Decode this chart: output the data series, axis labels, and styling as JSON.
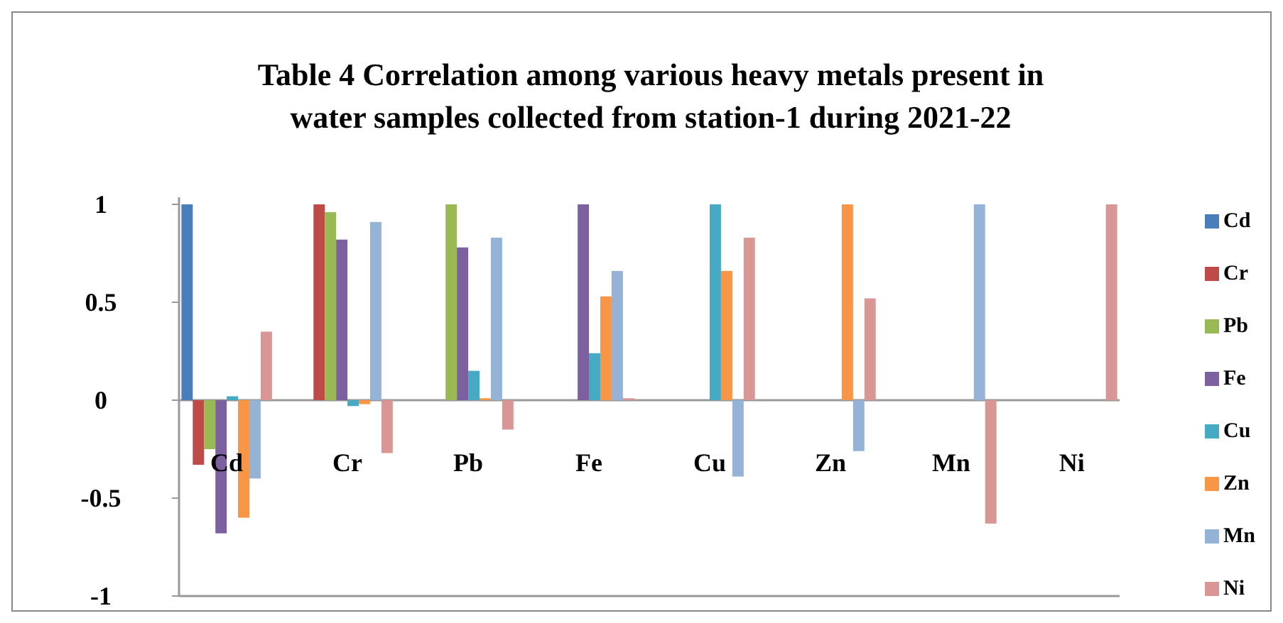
{
  "chart_data": {
    "type": "bar",
    "title": "Table 4 Correlation among various heavy metals present in water samples collected from station-1 during 2021-22",
    "categories": [
      "Cd",
      "Cr",
      "Pb",
      "Fe",
      "Cu",
      "Zn",
      "Mn",
      "Ni"
    ],
    "series": [
      {
        "name": "Cd",
        "color": "#4a7ebb",
        "values": [
          1,
          null,
          null,
          null,
          null,
          null,
          null,
          null
        ]
      },
      {
        "name": "Cr",
        "color": "#be4b48",
        "values": [
          -0.33,
          1,
          null,
          null,
          null,
          null,
          null,
          null
        ]
      },
      {
        "name": "Pb",
        "color": "#98b954",
        "values": [
          -0.25,
          0.96,
          1,
          null,
          null,
          null,
          null,
          null
        ]
      },
      {
        "name": "Fe",
        "color": "#7d60a0",
        "values": [
          -0.68,
          0.82,
          0.78,
          1,
          null,
          null,
          null,
          null
        ]
      },
      {
        "name": "Cu",
        "color": "#46aac5",
        "values": [
          0.02,
          -0.03,
          0.15,
          0.24,
          1,
          null,
          null,
          null
        ]
      },
      {
        "name": "Zn",
        "color": "#f79646",
        "values": [
          -0.6,
          -0.02,
          0.01,
          0.53,
          0.66,
          1,
          null,
          null
        ]
      },
      {
        "name": "Mn",
        "color": "#95b3d7",
        "values": [
          -0.4,
          0.91,
          0.83,
          0.66,
          -0.39,
          -0.26,
          1,
          null
        ]
      },
      {
        "name": "Ni",
        "color": "#d99694",
        "values": [
          0.35,
          -0.27,
          -0.15,
          0.01,
          0.83,
          0.52,
          -0.63,
          1
        ]
      }
    ],
    "ylim": [
      -1,
      1
    ],
    "yticks": [
      -1,
      -0.5,
      0,
      0.5,
      1
    ],
    "grid": false,
    "legend": "right"
  }
}
